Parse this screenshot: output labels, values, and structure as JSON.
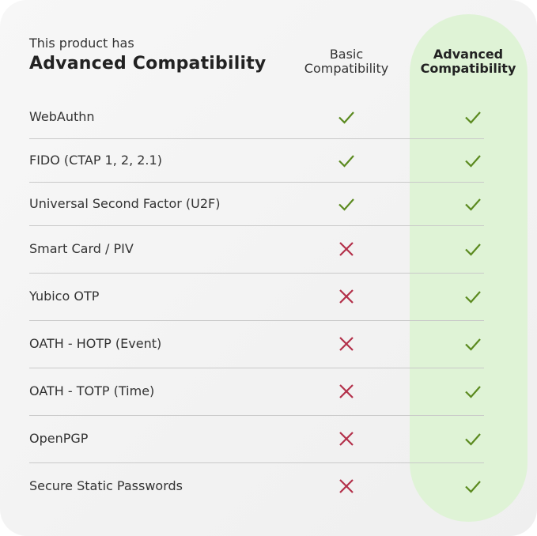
{
  "header": {
    "intro": "This product has",
    "title": "Advanced Compatibility",
    "columns": [
      {
        "label_line1": "Basic",
        "label_line2": "Compatibility"
      },
      {
        "label_line1": "Advanced",
        "label_line2": "Compatibility"
      }
    ]
  },
  "colors": {
    "check": "#5b8a1f",
    "cross": "#b3304a",
    "highlight": "#dff3d6"
  },
  "rows": [
    {
      "feature": "WebAuthn",
      "basic": "check-icon",
      "advanced": "check-icon"
    },
    {
      "feature": "FIDO (CTAP 1, 2, 2.1)",
      "basic": "check-icon",
      "advanced": "check-icon"
    },
    {
      "feature": "Universal Second Factor (U2F)",
      "basic": "check-icon",
      "advanced": "check-icon"
    },
    {
      "feature": "Smart Card / PIV",
      "basic": "cross-icon",
      "advanced": "check-icon"
    },
    {
      "feature": "Yubico OTP",
      "basic": "cross-icon",
      "advanced": "check-icon"
    },
    {
      "feature": "OATH - HOTP (Event)",
      "basic": "cross-icon",
      "advanced": "check-icon"
    },
    {
      "feature": "OATH - TOTP (Time)",
      "basic": "cross-icon",
      "advanced": "check-icon"
    },
    {
      "feature": "OpenPGP",
      "basic": "cross-icon",
      "advanced": "check-icon"
    },
    {
      "feature": "Secure Static Passwords",
      "basic": "cross-icon",
      "advanced": "check-icon"
    }
  ]
}
